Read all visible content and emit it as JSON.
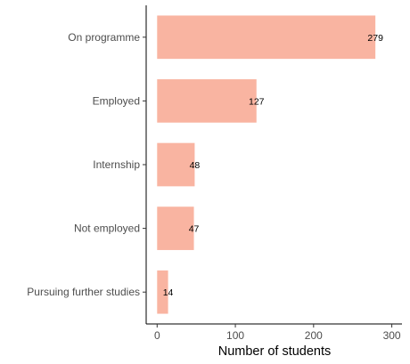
{
  "chart_data": {
    "type": "bar",
    "orientation": "horizontal",
    "title": "",
    "xlabel": "Number of students",
    "ylabel": "",
    "categories": [
      "On programme",
      "Employed",
      "Internship",
      "Not employed",
      "Pursuing further studies"
    ],
    "values": [
      279,
      127,
      48,
      47,
      14
    ],
    "xlim": [
      -14,
      313
    ],
    "xticks": [
      0,
      100,
      200,
      300
    ],
    "bar_color": "#f9b4a1",
    "grid": false,
    "legend": "none"
  }
}
